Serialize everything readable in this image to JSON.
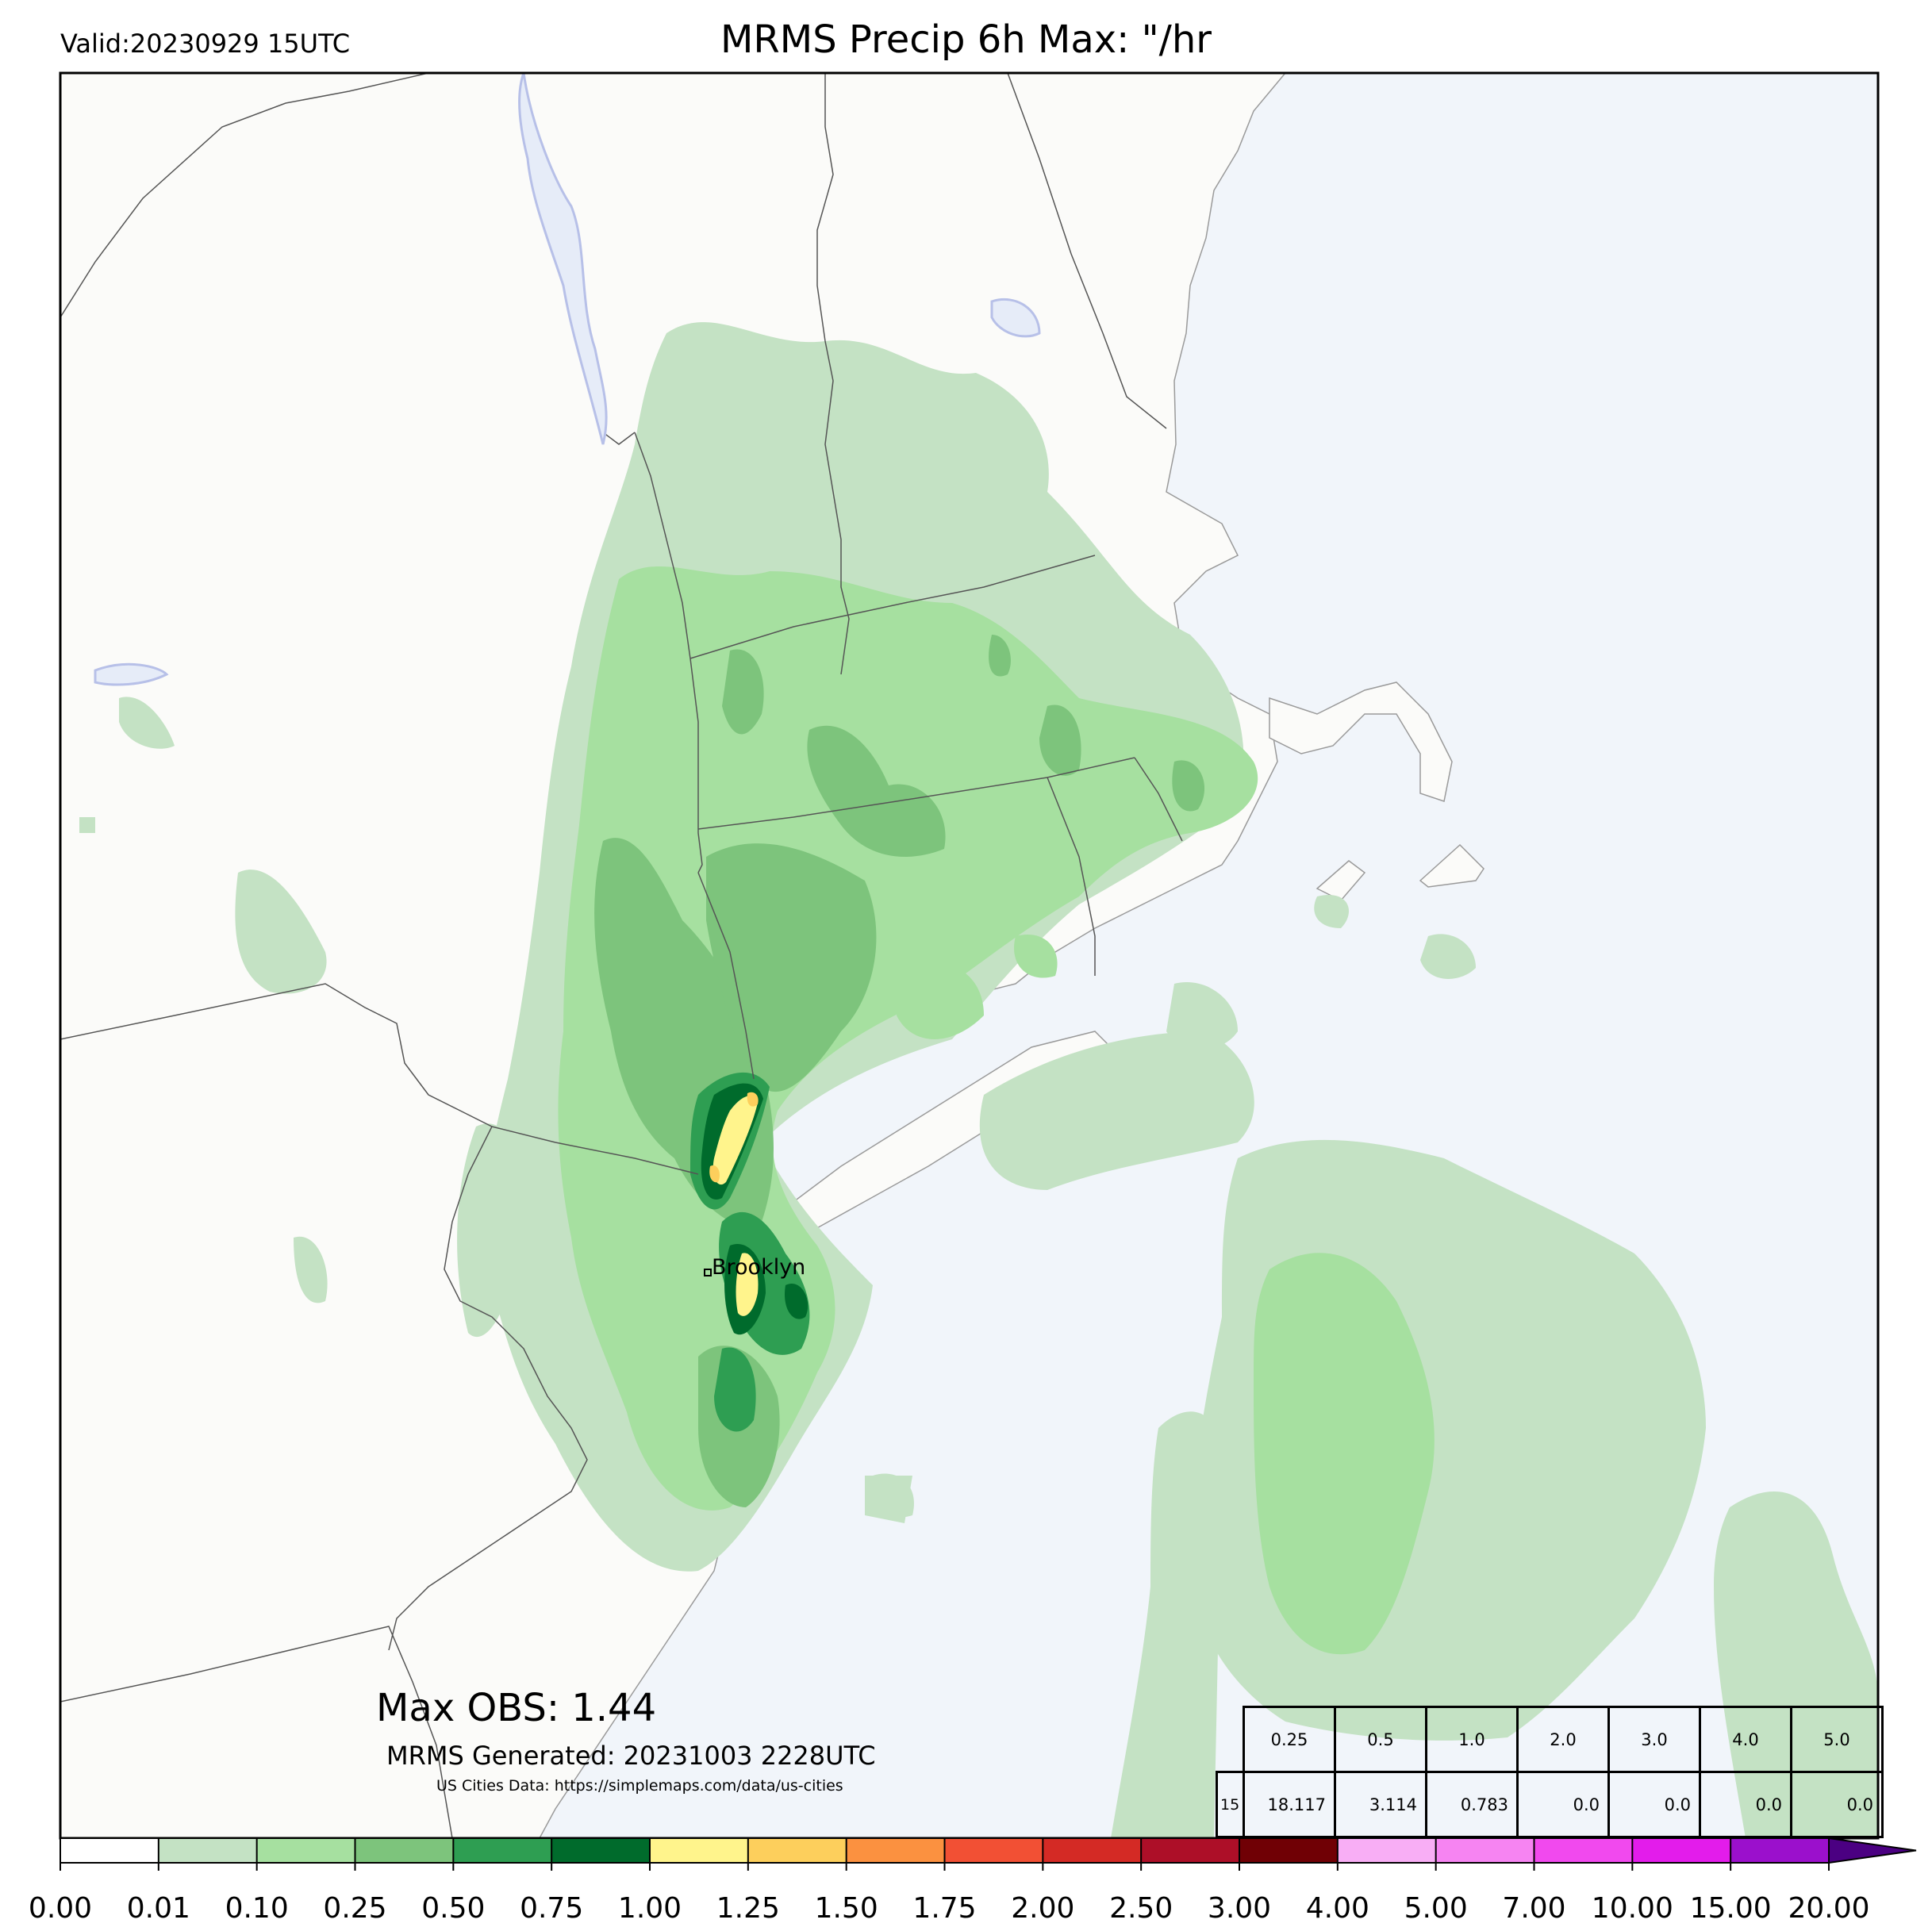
{
  "header": {
    "valid": "Valid:20230929 15UTC",
    "title": "MRMS Precip 6h Max: \"/hr"
  },
  "map": {
    "land_color": "#fbfbf9",
    "water_color": "#f1f5fa",
    "city_label": "Brooklyn"
  },
  "footer": {
    "max_obs": "Max OBS: 1.44",
    "generated": "MRMS Generated: 20231003 2228UTC",
    "city_data": "US Cities Data: https://simplemaps.com/data/us-cities"
  },
  "stats_table": {
    "thresholds": [
      "0.25",
      "0.5",
      "1.0",
      "2.0",
      "3.0",
      "4.0",
      "5.0"
    ],
    "row_label": "15",
    "values": [
      "18.117",
      "3.114",
      "0.783",
      "0.0",
      "0.0",
      "0.0",
      "0.0"
    ]
  },
  "colorbar": {
    "ticks": [
      "0.00",
      "0.01",
      "0.10",
      "0.25",
      "0.50",
      "0.75",
      "1.00",
      "1.25",
      "1.50",
      "1.75",
      "2.00",
      "2.50",
      "3.00",
      "4.00",
      "5.00",
      "7.00",
      "10.00",
      "15.00",
      "20.00"
    ],
    "colors": [
      "#ffffff",
      "#c4e2c4",
      "#a6e0a0",
      "#7dc47c",
      "#2e9e52",
      "#006b2c",
      "#fff48c",
      "#fdcf5c",
      "#fb9140",
      "#f25034",
      "#d42a25",
      "#ad0f28",
      "#700005",
      "#f8aef5",
      "#f684f2",
      "#f149ee",
      "#e31ceb",
      "#9b10cc"
    ],
    "extend_color": "#4b0082"
  }
}
